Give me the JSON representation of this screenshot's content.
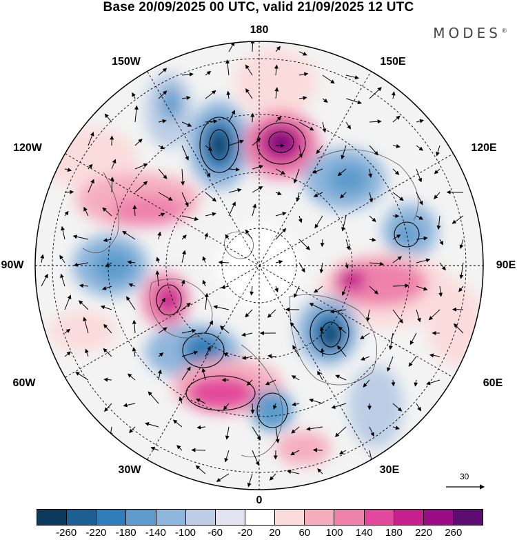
{
  "title": "Base 20/09/2025 00 UTC, valid 21/09/2025 12 UTC",
  "brand": {
    "text": "MODES",
    "mark": "®"
  },
  "longitude_labels": {
    "top": "180",
    "bottom": "0",
    "left": "90W",
    "right": "90E",
    "upper_left_outer": "150W",
    "upper_left_mid": "120W",
    "upper_right_outer": "150E",
    "upper_right_mid": "120E",
    "lower_left_mid": "60W",
    "lower_left_outer": "30W",
    "lower_right_mid": "60E",
    "lower_right_outer": "30E"
  },
  "reference_vector": {
    "label": "30"
  },
  "colorbar": {
    "colors": [
      "#0b3a5c",
      "#1b5f93",
      "#2e7db8",
      "#5c9bcc",
      "#8fb6dc",
      "#bccde5",
      "#e2e3f0",
      "#ffffff",
      "#fbdcdc",
      "#f5aec0",
      "#ee82ab",
      "#e2489b",
      "#c81f8f",
      "#9a0c84",
      "#5e0d73"
    ],
    "tick_labels": [
      "-260",
      "-220",
      "-180",
      "-140",
      "-100",
      "-60",
      "-20",
      "20",
      "60",
      "100",
      "140",
      "180",
      "220",
      "260"
    ]
  },
  "field_features": [
    {
      "name": "anomaly-positive-north-center",
      "value": 260
    },
    {
      "name": "anomaly-negative-north-left",
      "value": -220
    },
    {
      "name": "anomaly-negative-south-right",
      "value": -220
    },
    {
      "name": "anomaly-positive-south-left",
      "value": 180
    },
    {
      "name": "anomaly-positive-west",
      "value": 180
    },
    {
      "name": "anomaly-positive-east",
      "value": 140
    }
  ]
}
